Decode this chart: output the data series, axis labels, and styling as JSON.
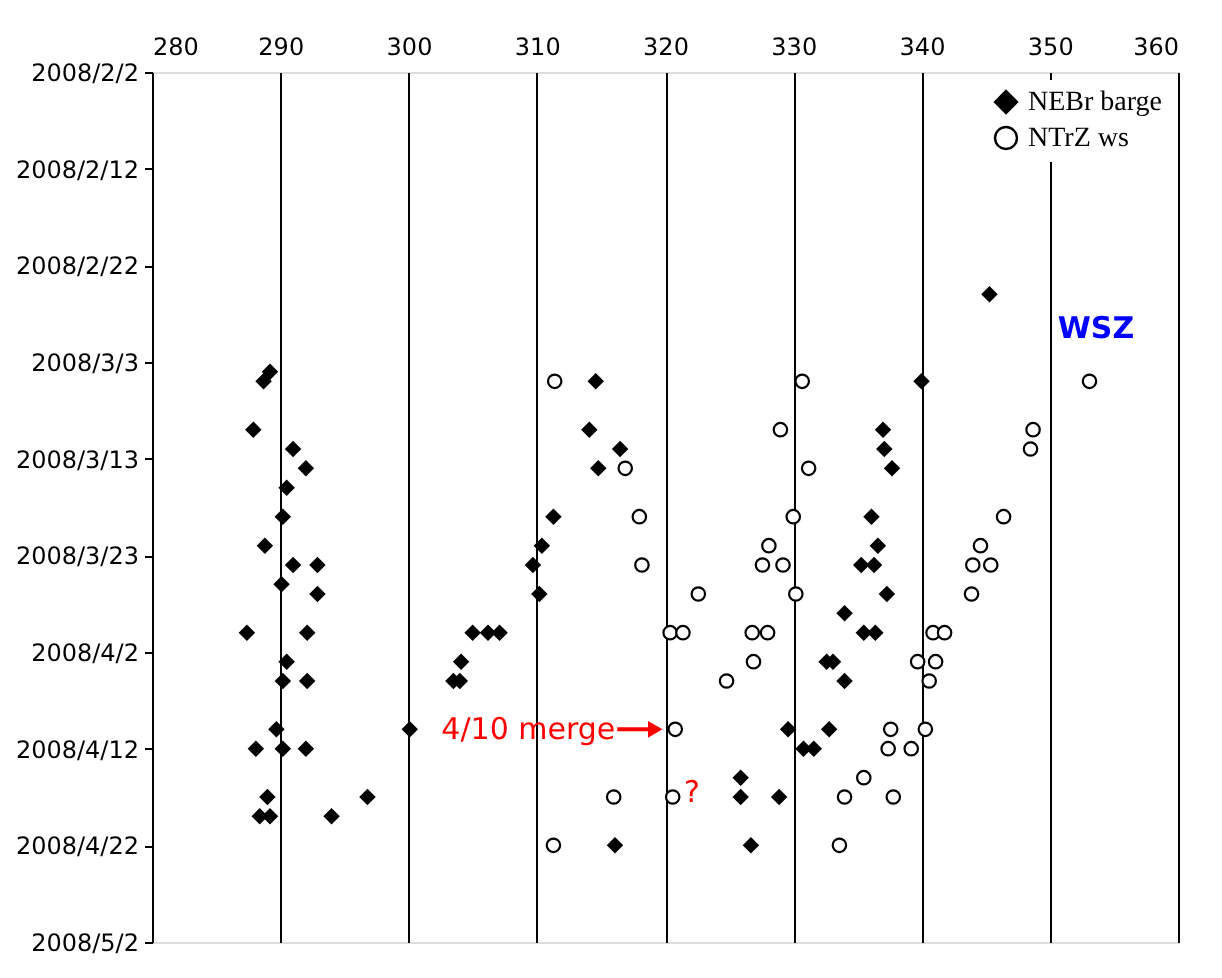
{
  "chart_data": {
    "type": "scatter",
    "orientation": "horizontal",
    "xlim": [
      280,
      360
    ],
    "xticks": [
      280,
      290,
      300,
      310,
      320,
      330,
      340,
      350,
      360
    ],
    "ylim": [
      "2008-05-02",
      "2008-02-02"
    ],
    "yticks": [
      {
        "value": "2008-02-02",
        "label": "2008/2/2"
      },
      {
        "value": "2008-02-12",
        "label": "2008/2/12"
      },
      {
        "value": "2008-02-22",
        "label": "2008/2/22"
      },
      {
        "value": "2008-03-03",
        "label": "2008/3/3"
      },
      {
        "value": "2008-03-13",
        "label": "2008/3/13"
      },
      {
        "value": "2008-03-23",
        "label": "2008/3/23"
      },
      {
        "value": "2008-04-02",
        "label": "2008/4/2"
      },
      {
        "value": "2008-04-12",
        "label": "2008/4/12"
      },
      {
        "value": "2008-04-22",
        "label": "2008/4/22"
      },
      {
        "value": "2008-05-02",
        "label": "2008/5/2"
      }
    ],
    "grid": "x",
    "legend": "top right",
    "series": [
      {
        "name": "NEBr barge",
        "color": "#000000",
        "marker": "diamond",
        "values": [
          289.2,
          288.7,
          314.6,
          287.9,
          314.1,
          291.0,
          316.5,
          292.0,
          314.8,
          290.5,
          290.2,
          311.3,
          288.8,
          310.4,
          291.0,
          292.9,
          309.7,
          290.1,
          292.9,
          310.2,
          287.4,
          292.1,
          305.0,
          306.2,
          307.1,
          290.5,
          304.1,
          290.2,
          292.1,
          303.5,
          304.0,
          289.7,
          300.1,
          288.1,
          290.2,
          292.0,
          289.0,
          296.8,
          288.4,
          289.2,
          294.0,
          316.1,
          345.3,
          340.0,
          337.0,
          337.1,
          337.7,
          336.1,
          336.6,
          335.3,
          336.3,
          337.3,
          334.0,
          335.5,
          336.4,
          332.6,
          333.1,
          334.0,
          329.6,
          332.8,
          330.8,
          331.6,
          325.9,
          325.9,
          328.9,
          326.7
        ],
        "x": [
          "2008-03-04",
          "2008-03-05",
          "2008-03-05",
          "2008-03-10",
          "2008-03-10",
          "2008-03-12",
          "2008-03-12",
          "2008-03-14",
          "2008-03-14",
          "2008-03-16",
          "2008-03-19",
          "2008-03-19",
          "2008-03-22",
          "2008-03-22",
          "2008-03-24",
          "2008-03-24",
          "2008-03-24",
          "2008-03-26",
          "2008-03-27",
          "2008-03-27",
          "2008-03-31",
          "2008-03-31",
          "2008-03-31",
          "2008-03-31",
          "2008-03-31",
          "2008-04-03",
          "2008-04-03",
          "2008-04-05",
          "2008-04-05",
          "2008-04-05",
          "2008-04-05",
          "2008-04-10",
          "2008-04-10",
          "2008-04-12",
          "2008-04-12",
          "2008-04-12",
          "2008-04-17",
          "2008-04-17",
          "2008-04-19",
          "2008-04-19",
          "2008-04-19",
          "2008-04-22",
          "2008-02-25",
          "2008-03-05",
          "2008-03-10",
          "2008-03-12",
          "2008-03-14",
          "2008-03-19",
          "2008-03-22",
          "2008-03-24",
          "2008-03-24",
          "2008-03-27",
          "2008-03-29",
          "2008-03-31",
          "2008-03-31",
          "2008-04-03",
          "2008-04-03",
          "2008-04-05",
          "2008-04-10",
          "2008-04-10",
          "2008-04-12",
          "2008-04-12",
          "2008-04-15",
          "2008-04-17",
          "2008-04-17",
          "2008-04-22"
        ]
      },
      {
        "name": "NTrZ ws",
        "color": "#000000",
        "marker": "circle",
        "values": [
          311.4,
          330.7,
          353.1,
          329.0,
          348.7,
          348.5,
          316.9,
          331.2,
          318.0,
          330.0,
          346.4,
          328.1,
          344.6,
          318.2,
          327.6,
          329.2,
          344.0,
          345.4,
          322.6,
          330.2,
          343.9,
          320.4,
          321.4,
          326.8,
          328.0,
          340.9,
          341.8,
          326.9,
          339.7,
          341.1,
          324.8,
          340.6,
          320.8,
          337.6,
          340.3,
          337.4,
          339.2,
          335.5,
          316.0,
          320.6,
          334.0,
          337.8,
          311.3,
          333.6
        ],
        "x": [
          "2008-03-05",
          "2008-03-05",
          "2008-03-05",
          "2008-03-10",
          "2008-03-10",
          "2008-03-12",
          "2008-03-14",
          "2008-03-14",
          "2008-03-19",
          "2008-03-19",
          "2008-03-19",
          "2008-03-22",
          "2008-03-22",
          "2008-03-24",
          "2008-03-24",
          "2008-03-24",
          "2008-03-24",
          "2008-03-24",
          "2008-03-27",
          "2008-03-27",
          "2008-03-27",
          "2008-03-31",
          "2008-03-31",
          "2008-03-31",
          "2008-03-31",
          "2008-03-31",
          "2008-03-31",
          "2008-04-03",
          "2008-04-03",
          "2008-04-03",
          "2008-04-05",
          "2008-04-05",
          "2008-04-10",
          "2008-04-10",
          "2008-04-10",
          "2008-04-12",
          "2008-04-12",
          "2008-04-15",
          "2008-04-17",
          "2008-04-17",
          "2008-04-17",
          "2008-04-17",
          "2008-04-22",
          "2008-04-22"
        ]
      }
    ],
    "annotations": [
      "WSZ",
      {
        "text": "4/10 merge",
        "x": 320.8,
        "y": "2008-04-10"
      },
      "?"
    ]
  }
}
